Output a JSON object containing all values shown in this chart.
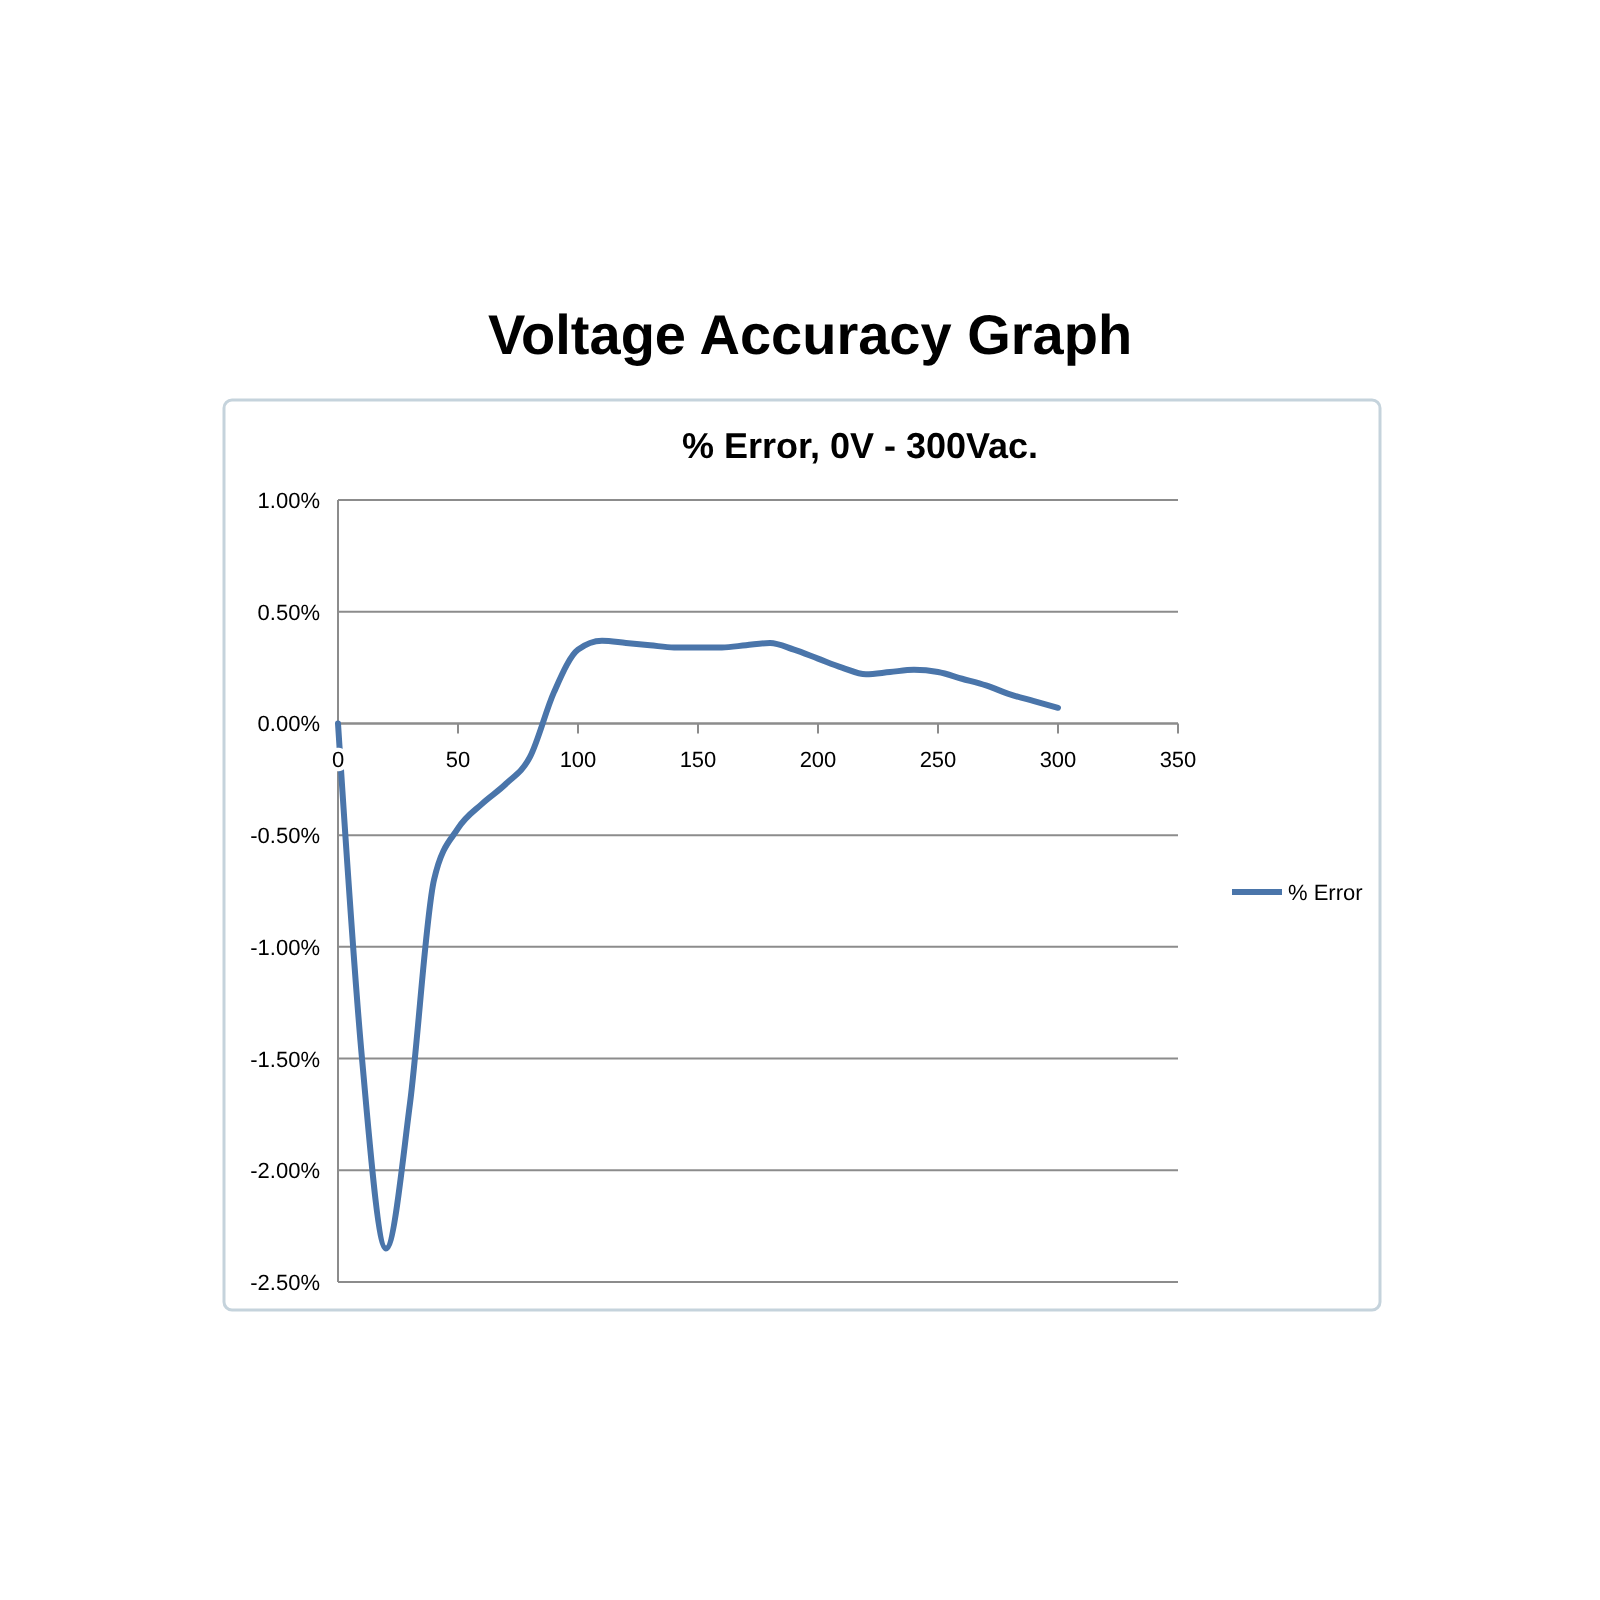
{
  "chart_data": {
    "type": "line",
    "title": "Voltage Accuracy Graph",
    "subtitle": "% Error, 0V - 300Vac.",
    "x": [
      0,
      10,
      20,
      30,
      40,
      50,
      60,
      70,
      80,
      90,
      100,
      110,
      120,
      130,
      140,
      150,
      160,
      170,
      180,
      190,
      200,
      210,
      220,
      230,
      240,
      250,
      260,
      270,
      280,
      290,
      300
    ],
    "series": [
      {
        "name": "% Error",
        "color": "#4a75aa",
        "values": [
          0.0,
          -1.5,
          -2.35,
          -1.7,
          -0.7,
          -0.47,
          -0.36,
          -0.27,
          -0.15,
          0.14,
          0.33,
          0.37,
          0.36,
          0.35,
          0.34,
          0.34,
          0.34,
          0.35,
          0.36,
          0.33,
          0.29,
          0.25,
          0.22,
          0.23,
          0.24,
          0.23,
          0.2,
          0.17,
          0.13,
          0.1,
          0.07
        ]
      }
    ],
    "xlim": [
      0,
      350
    ],
    "xticks": [
      0,
      50,
      100,
      150,
      200,
      250,
      300,
      350
    ],
    "ylim": [
      -2.5,
      1
    ],
    "yticks": [
      {
        "value": 1,
        "label": "1.00%"
      },
      {
        "value": 0.5,
        "label": "0.50%"
      },
      {
        "value": 0,
        "label": "0.00%"
      },
      {
        "value": -0.5,
        "label": "-0.50%"
      },
      {
        "value": -1,
        "label": "-1.00%"
      },
      {
        "value": -1.5,
        "label": "-1.50%"
      },
      {
        "value": -2,
        "label": "-2.00%"
      },
      {
        "value": -2.5,
        "label": "-2.50%"
      }
    ],
    "grid": "y",
    "legend": "right"
  }
}
